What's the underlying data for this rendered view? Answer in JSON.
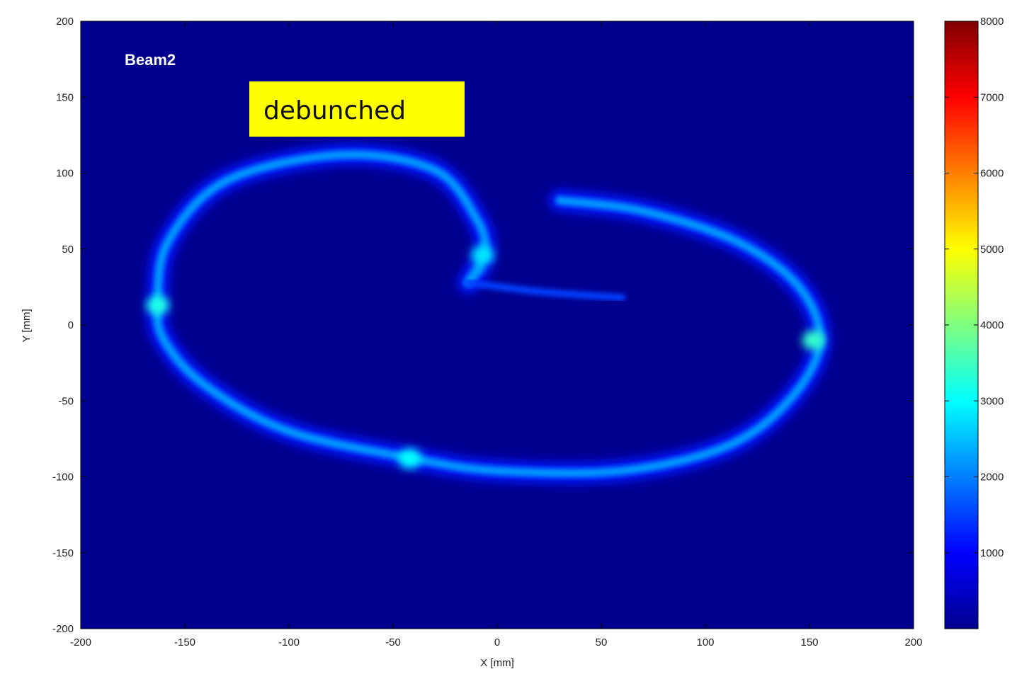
{
  "chart_data": {
    "type": "heatmap",
    "title": "Beam2",
    "annotation": "debunched",
    "xlabel": "X [mm]",
    "ylabel": "Y [mm]",
    "xlim": [
      -200,
      200
    ],
    "ylim": [
      -200,
      200
    ],
    "x_ticks": [
      -200,
      -150,
      -100,
      -50,
      0,
      50,
      100,
      150,
      200
    ],
    "y_ticks": [
      200,
      150,
      100,
      50,
      0,
      -50,
      -100,
      -150,
      -200
    ],
    "x_tick_labels": [
      "-200",
      "-150",
      "-100",
      "-50",
      "0",
      "50",
      "100",
      "150",
      "200"
    ],
    "y_tick_labels": [
      "200",
      "150",
      "100",
      "50",
      "0",
      "-50",
      "-100",
      "-150",
      "-200"
    ],
    "colorbar": {
      "range": [
        0,
        8000
      ],
      "ticks": [
        8000,
        7000,
        6000,
        5000,
        4000,
        3000,
        2000,
        1000
      ],
      "tick_labels": [
        "8000",
        "7000",
        "6000",
        "5000",
        "4000",
        "3000",
        "2000",
        "1000"
      ],
      "colormap": "jet"
    },
    "background_color": "#00008f",
    "beam_trace": {
      "description_points_xy": [
        [
          -8,
          37
        ],
        [
          -14,
          28
        ],
        [
          -6,
          48
        ],
        [
          -10,
          70
        ],
        [
          -30,
          102
        ],
        [
          -75,
          112
        ],
        [
          -130,
          95
        ],
        [
          -158,
          55
        ],
        [
          -163,
          15
        ],
        [
          -160,
          -10
        ],
        [
          -140,
          -40
        ],
        [
          -100,
          -70
        ],
        [
          -40,
          -88
        ],
        [
          0,
          -96
        ],
        [
          60,
          -96
        ],
        [
          110,
          -80
        ],
        [
          140,
          -50
        ],
        [
          155,
          -12
        ],
        [
          145,
          25
        ],
        [
          115,
          55
        ],
        [
          70,
          75
        ],
        [
          30,
          82
        ]
      ],
      "tail_points_xy": [
        [
          -14,
          28
        ],
        [
          20,
          22
        ],
        [
          60,
          18
        ]
      ],
      "hotspots": [
        {
          "x": -163,
          "y": 13,
          "value": 3200
        },
        {
          "x": -42,
          "y": -88,
          "value": 3000
        },
        {
          "x": 152,
          "y": -10,
          "value": 3400
        },
        {
          "x": -7,
          "y": 46,
          "value": 2800
        }
      ],
      "typical_value": 2200
    }
  }
}
